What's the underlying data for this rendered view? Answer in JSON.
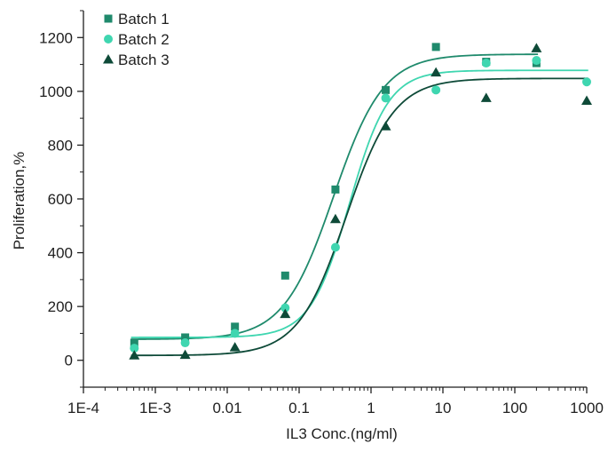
{
  "chart_data": {
    "type": "scatter",
    "title": "",
    "xlabel": "IL3 Conc.(ng/ml)",
    "ylabel": "Proliferation,%",
    "xscale": "log",
    "xlim": [
      0.0001,
      1000
    ],
    "ylim": [
      -100,
      1300
    ],
    "x_ticks": [
      0.0001,
      0.001,
      0.01,
      0.1,
      1,
      10,
      100,
      1000
    ],
    "x_tick_labels": [
      "1E-4",
      "1E-3",
      "0.01",
      "0.1",
      "1",
      "10",
      "100",
      "1000"
    ],
    "y_ticks": [
      0,
      200,
      400,
      600,
      800,
      1000,
      1200
    ],
    "y_tick_labels": [
      "0",
      "200",
      "400",
      "600",
      "800",
      "1000",
      "1200"
    ],
    "legend_position": "top-left",
    "grid": false,
    "series": [
      {
        "name": "Batch 1",
        "marker": "square",
        "color": "#1f8a6c",
        "x": [
          0.00051,
          0.0026,
          0.0128,
          0.064,
          0.32,
          1.6,
          8,
          40,
          200
        ],
        "y": [
          65,
          85,
          125,
          315,
          635,
          1005,
          1165,
          1110,
          1105
        ],
        "fit": {
          "bottom": 78,
          "top": 1138,
          "ec50": 0.3,
          "hill": 1.25
        }
      },
      {
        "name": "Batch 2",
        "marker": "circle",
        "color": "#3fd6b0",
        "x": [
          0.00051,
          0.0026,
          0.0128,
          0.064,
          0.32,
          1.6,
          8,
          40,
          200,
          1000
        ],
        "y": [
          45,
          65,
          100,
          195,
          420,
          975,
          1005,
          1105,
          1115,
          1035
        ],
        "fit": {
          "bottom": 85,
          "top": 1078,
          "ec50": 0.5,
          "hill": 1.6
        }
      },
      {
        "name": "Batch 3",
        "marker": "triangle",
        "color": "#0e4a38",
        "x": [
          0.00051,
          0.0026,
          0.0128,
          0.064,
          0.32,
          1.6,
          8,
          40,
          200,
          1000
        ],
        "y": [
          18,
          20,
          48,
          172,
          525,
          870,
          1070,
          975,
          1160,
          965
        ],
        "fit": {
          "bottom": 18,
          "top": 1048,
          "ec50": 0.45,
          "hill": 1.3
        }
      }
    ]
  }
}
